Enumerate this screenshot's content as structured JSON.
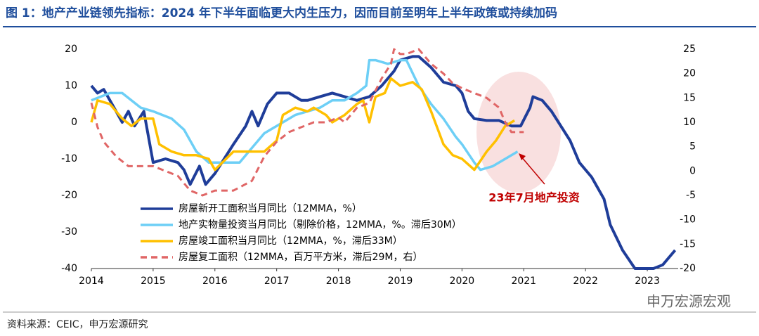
{
  "chart_data": {
    "type": "line",
    "title": "图 1：地产产业链领先指标：2024 年下半年面临更大内生压力，因而目前至明年上半年政策或持续加码",
    "source": "资料来源：CEIC，申万宏源研究",
    "watermark": "申万宏源宏观",
    "annotations": [
      {
        "text": "23年7月地产投资"
      }
    ],
    "xlim": [
      2014,
      2023.5
    ],
    "xticks": [
      2014,
      2015,
      2016,
      2017,
      2018,
      2019,
      2020,
      2021,
      2022,
      2023
    ],
    "ylim": [
      -40,
      20
    ],
    "yticks": [
      -40,
      -30,
      -20,
      -10,
      0,
      10,
      20
    ],
    "y2lim": [
      -20,
      25
    ],
    "y2ticks": [
      -20,
      -15,
      -10,
      -5,
      0,
      5,
      10,
      15,
      20,
      25
    ],
    "series": [
      {
        "name": "房屋新开工面积当月同比（12MMA，%）",
        "color": "#1f3d99",
        "x": [
          2014.0,
          2014.1,
          2014.2,
          2014.4,
          2014.5,
          2014.6,
          2014.7,
          2014.85,
          2015.0,
          2015.2,
          2015.4,
          2015.5,
          2015.6,
          2015.75,
          2015.85,
          2016.0,
          2016.15,
          2016.3,
          2016.5,
          2016.6,
          2016.7,
          2016.85,
          2017.0,
          2017.2,
          2017.4,
          2017.5,
          2017.7,
          2017.9,
          2018.1,
          2018.3,
          2018.5,
          2018.7,
          2018.9,
          2019.0,
          2019.2,
          2019.3,
          2019.5,
          2019.7,
          2019.9,
          2020.0,
          2020.1,
          2020.2,
          2020.4,
          2020.6,
          2020.8,
          2020.95,
          2021.1,
          2021.15,
          2021.3,
          2021.45,
          2021.6,
          2021.75,
          2021.9,
          2022.1,
          2022.3,
          2022.4,
          2022.6,
          2022.8,
          2023.0,
          2023.1,
          2023.25,
          2023.45
        ],
        "values": [
          10,
          8,
          9,
          3,
          0,
          3,
          -1,
          3,
          -11,
          -10,
          -11,
          -13,
          -17,
          -12,
          -17,
          -14,
          -10,
          -6,
          -1,
          3,
          -1,
          5,
          8,
          8,
          6,
          6,
          7,
          8,
          7,
          6,
          7,
          10,
          14,
          17,
          18,
          18,
          15,
          11,
          10,
          8,
          3,
          1,
          0.5,
          0.5,
          -1,
          -1,
          4,
          7,
          6,
          3,
          -1,
          -5,
          -11,
          -15,
          -21,
          -28,
          -35,
          -40,
          -40,
          -40,
          -39,
          -35
        ]
      },
      {
        "name": "地产实物量投资当月同比（剔除价格，12MMA，%。滞后30M）",
        "color": "#6dcff6",
        "x": [
          2014.0,
          2014.3,
          2014.5,
          2014.8,
          2015.0,
          2015.3,
          2015.5,
          2015.7,
          2015.9,
          2016.2,
          2016.4,
          2016.6,
          2016.8,
          2017.0,
          2017.3,
          2017.5,
          2017.7,
          2017.9,
          2018.1,
          2018.3,
          2018.45,
          2018.5,
          2018.6,
          2018.8,
          2019.0,
          2019.1,
          2019.3,
          2019.5,
          2019.7,
          2019.9,
          2020.0,
          2020.2,
          2020.3,
          2020.5,
          2020.7,
          2020.9
        ],
        "values": [
          6,
          8,
          8,
          4,
          3,
          1,
          -2,
          -8,
          -11,
          -11,
          -11,
          -7,
          -3,
          -1,
          2,
          3,
          4,
          6,
          6,
          8,
          10,
          17,
          17,
          16,
          17,
          17,
          10,
          5,
          1,
          -4,
          -6,
          -11,
          -13,
          -12,
          -10,
          -8
        ]
      },
      {
        "name": "房屋竣工面积当月同比（12MMA，%，滞后33M）",
        "color": "#ffc000",
        "x": [
          2014.0,
          2014.1,
          2014.3,
          2014.5,
          2014.65,
          2014.8,
          2015.0,
          2015.1,
          2015.3,
          2015.5,
          2015.7,
          2015.9,
          2016.0,
          2016.3,
          2016.5,
          2016.8,
          2017.0,
          2017.1,
          2017.3,
          2017.5,
          2017.6,
          2017.8,
          2017.9,
          2018.1,
          2018.3,
          2018.4,
          2018.5,
          2018.6,
          2018.75,
          2018.85,
          2019.0,
          2019.2,
          2019.35,
          2019.5,
          2019.7,
          2019.85,
          2020.0,
          2020.2,
          2020.4,
          2020.55,
          2020.7,
          2020.85
        ],
        "values": [
          0,
          6,
          5,
          1,
          -1,
          1,
          1,
          -6,
          -8,
          -9,
          -9,
          -10,
          -13,
          -8,
          -8,
          -8,
          -5,
          2,
          4,
          3,
          4,
          2,
          0,
          2,
          5,
          6,
          0,
          7,
          8,
          12,
          10,
          11,
          9,
          3,
          -6,
          -9,
          -10,
          -13,
          -8,
          -5,
          -1,
          0.5
        ]
      },
      {
        "name": "房屋复工面积（12MMA，百万平方米，滞后29M，右）",
        "color": "#e06666",
        "dash": true,
        "axis": "y2",
        "x": [
          2014.0,
          2014.1,
          2014.2,
          2014.4,
          2014.6,
          2014.8,
          2015.0,
          2015.2,
          2015.4,
          2015.6,
          2015.8,
          2016.0,
          2016.3,
          2016.6,
          2016.8,
          2017.0,
          2017.2,
          2017.4,
          2017.6,
          2017.8,
          2018.0,
          2018.1,
          2018.3,
          2018.5,
          2018.7,
          2018.85,
          2018.9,
          2019.0,
          2019.1,
          2019.3,
          2019.5,
          2019.7,
          2019.85,
          2020.0,
          2020.2,
          2020.4,
          2020.6,
          2020.7,
          2020.8,
          2020.95,
          2021.0
        ],
        "values": [
          14,
          9,
          6,
          3,
          1,
          1,
          1,
          0,
          -1,
          -4,
          -5,
          -4,
          -4,
          -2,
          3,
          6,
          8,
          9,
          10,
          10,
          11,
          10,
          13,
          14,
          19,
          22,
          25,
          24,
          24,
          25,
          22,
          20,
          18,
          17,
          16,
          15,
          13,
          10,
          8,
          8,
          8
        ]
      }
    ]
  }
}
